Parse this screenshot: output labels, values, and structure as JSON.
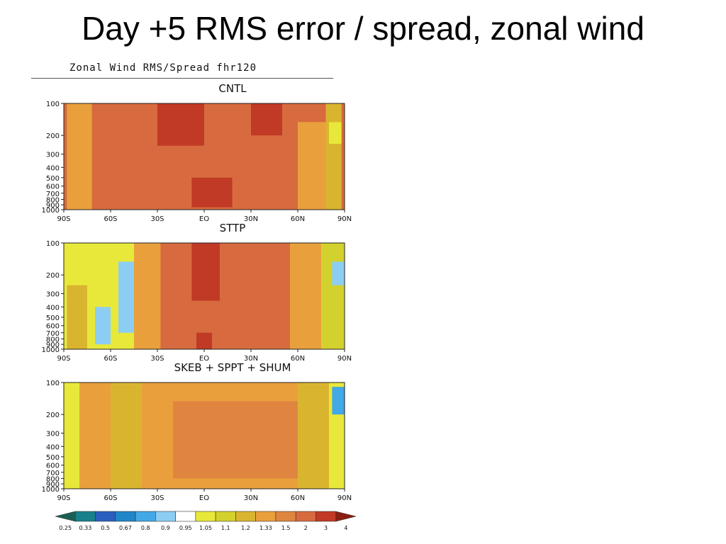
{
  "slide": {
    "title": "Day +5 RMS error / spread, zonal wind"
  },
  "figure": {
    "header": "Zonal Wind RMS/Spread   fhr120"
  },
  "colors": {
    "legend": [
      "#1b5e53",
      "#17808a",
      "#2a5fbf",
      "#1f86c9",
      "#42a8e6",
      "#8ccdf3",
      "#ffffff",
      "#e8e83a",
      "#d3d12d",
      "#d9b52f",
      "#e9a03c",
      "#e08540",
      "#d86a3f",
      "#c03a26",
      "#8c1d10"
    ]
  },
  "chart_data": [
    {
      "type": "heatmap",
      "title": "CNTL",
      "xlabel": "",
      "ylabel": "",
      "x_ticks": [
        "90S",
        "60S",
        "30S",
        "EQ",
        "30N",
        "60N",
        "90N"
      ],
      "y_ticks": [
        "100",
        "200",
        "300",
        "400",
        "500",
        "600",
        "700",
        "800",
        "900",
        "1000"
      ],
      "y_scale": "log-pressure",
      "ylim": [
        1000,
        100
      ],
      "xlim": [
        -90,
        90
      ],
      "colorbar_levels": [
        "0.25",
        "0.33",
        "0.5",
        "0.67",
        "0.8",
        "0.9",
        "0.95",
        "1.05",
        "1.1",
        "1.2",
        "1.33",
        "1.5",
        "2",
        "3",
        "4"
      ],
      "dominant_category": "1.5–2",
      "regions": [
        {
          "lat": [
            -90,
            90
          ],
          "p": [
            100,
            1000
          ],
          "ratio": 1.6
        },
        {
          "lat": [
            -88,
            -72
          ],
          "p": [
            100,
            1000
          ],
          "ratio": 1.25
        },
        {
          "lat": [
            -30,
            0
          ],
          "p": [
            100,
            250
          ],
          "ratio": 2.2
        },
        {
          "lat": [
            30,
            50
          ],
          "p": [
            100,
            200
          ],
          "ratio": 2.1
        },
        {
          "lat": [
            -8,
            18
          ],
          "p": [
            500,
            950
          ],
          "ratio": 2.1
        },
        {
          "lat": [
            60,
            80
          ],
          "p": [
            150,
            1000
          ],
          "ratio": 1.3
        },
        {
          "lat": [
            78,
            88
          ],
          "p": [
            100,
            1000
          ],
          "ratio": 1.1
        },
        {
          "lat": [
            80,
            88
          ],
          "p": [
            150,
            240
          ],
          "ratio": 0.98
        }
      ]
    },
    {
      "type": "heatmap",
      "title": "STTP",
      "xlabel": "",
      "ylabel": "",
      "x_ticks": [
        "90S",
        "60S",
        "30S",
        "EQ",
        "30N",
        "60N",
        "90N"
      ],
      "y_ticks": [
        "100",
        "200",
        "300",
        "400",
        "500",
        "600",
        "700",
        "800",
        "900",
        "1000"
      ],
      "y_scale": "log-pressure",
      "ylim": [
        1000,
        100
      ],
      "xlim": [
        -90,
        90
      ],
      "colorbar_levels": [
        "0.25",
        "0.33",
        "0.5",
        "0.67",
        "0.8",
        "0.9",
        "0.95",
        "1.05",
        "1.1",
        "1.2",
        "1.33",
        "1.5",
        "2",
        "3",
        "4"
      ],
      "regions": [
        {
          "lat": [
            -90,
            90
          ],
          "p": [
            100,
            1000
          ],
          "ratio": 1.6
        },
        {
          "lat": [
            -90,
            -30
          ],
          "p": [
            100,
            1000
          ],
          "ratio": 1.0
        },
        {
          "lat": [
            -88,
            -75
          ],
          "p": [
            250,
            1000
          ],
          "ratio": 1.15
        },
        {
          "lat": [
            -70,
            -60
          ],
          "p": [
            400,
            900
          ],
          "ratio": 0.88
        },
        {
          "lat": [
            -55,
            -45
          ],
          "p": [
            150,
            700
          ],
          "ratio": 0.88
        },
        {
          "lat": [
            -45,
            -28
          ],
          "p": [
            100,
            1000
          ],
          "ratio": 1.2
        },
        {
          "lat": [
            -8,
            10
          ],
          "p": [
            100,
            350
          ],
          "ratio": 2.2
        },
        {
          "lat": [
            -5,
            5
          ],
          "p": [
            700,
            1000
          ],
          "ratio": 2.1
        },
        {
          "lat": [
            55,
            75
          ],
          "p": [
            100,
            1000
          ],
          "ratio": 1.3
        },
        {
          "lat": [
            75,
            90
          ],
          "p": [
            100,
            1000
          ],
          "ratio": 1.05
        },
        {
          "lat": [
            82,
            90
          ],
          "p": [
            150,
            250
          ],
          "ratio": 0.85
        }
      ]
    },
    {
      "type": "heatmap",
      "title": "SKEB  +  SPPT  +  SHUM",
      "xlabel": "",
      "ylabel": "",
      "x_ticks": [
        "90S",
        "60S",
        "30S",
        "EQ",
        "30N",
        "60N",
        "90N"
      ],
      "y_ticks": [
        "100",
        "200",
        "300",
        "400",
        "500",
        "600",
        "700",
        "800",
        "900",
        "1000"
      ],
      "y_scale": "log-pressure",
      "ylim": [
        1000,
        100
      ],
      "xlim": [
        -90,
        90
      ],
      "colorbar_levels": [
        "0.25",
        "0.33",
        "0.5",
        "0.67",
        "0.8",
        "0.9",
        "0.95",
        "1.05",
        "1.1",
        "1.2",
        "1.33",
        "1.5",
        "2",
        "3",
        "4"
      ],
      "regions": [
        {
          "lat": [
            -90,
            90
          ],
          "p": [
            100,
            1000
          ],
          "ratio": 1.25
        },
        {
          "lat": [
            -90,
            -80
          ],
          "p": [
            100,
            1000
          ],
          "ratio": 1.0
        },
        {
          "lat": [
            -60,
            -40
          ],
          "p": [
            100,
            1000
          ],
          "ratio": 1.1
        },
        {
          "lat": [
            -20,
            60
          ],
          "p": [
            150,
            800
          ],
          "ratio": 1.4
        },
        {
          "lat": [
            60,
            80
          ],
          "p": [
            100,
            1000
          ],
          "ratio": 1.15
        },
        {
          "lat": [
            80,
            90
          ],
          "p": [
            100,
            1000
          ],
          "ratio": 1.0
        },
        {
          "lat": [
            82,
            90
          ],
          "p": [
            110,
            200
          ],
          "ratio": 0.7
        }
      ]
    }
  ]
}
